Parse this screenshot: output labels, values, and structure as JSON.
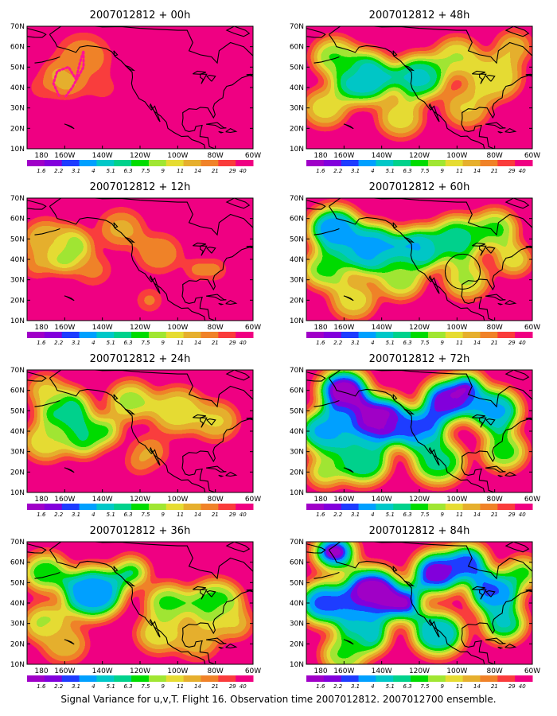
{
  "caption": "Signal Variance for u,v,T. Flight 16. Observation time 2007012812. 2007012700 ensemble.",
  "panels": [
    {
      "title": "2007012812 + 00h",
      "intensity": 0.35,
      "track": true
    },
    {
      "title": "2007012812 + 12h",
      "intensity": 0.55
    },
    {
      "title": "2007012812 + 24h",
      "intensity": 0.7
    },
    {
      "title": "2007012812 + 36h",
      "intensity": 0.82
    },
    {
      "title": "2007012812 + 48h",
      "intensity": 0.78
    },
    {
      "title": "2007012812 + 60h",
      "intensity": 0.88,
      "circle": true
    },
    {
      "title": "2007012812 + 72h",
      "intensity": 1.0
    },
    {
      "title": "2007012812 + 84h",
      "intensity": 1.05
    }
  ],
  "axes": {
    "lat_labels": [
      "10N",
      "20N",
      "30N",
      "40N",
      "50N",
      "60N",
      "70N"
    ],
    "lon_labels": [
      "180",
      "160W",
      "140W",
      "120W",
      "100W",
      "80W",
      "60W"
    ]
  },
  "colorbar": {
    "labels": [
      "1.6",
      "2.2",
      "3.1",
      "4",
      "5.1",
      "6.3",
      "7.5",
      "9",
      "11",
      "14",
      "21",
      "29",
      "40"
    ],
    "colors": [
      "#a000c8",
      "#8200dc",
      "#1e3cff",
      "#00a0ff",
      "#00c8c8",
      "#00d28c",
      "#00dc00",
      "#a0e632",
      "#e6dc32",
      "#e6af2d",
      "#f08228",
      "#fa3c3c",
      "#f00082"
    ]
  },
  "annotation_colors": {
    "track": "#ff1493",
    "coastline": "#000000"
  }
}
